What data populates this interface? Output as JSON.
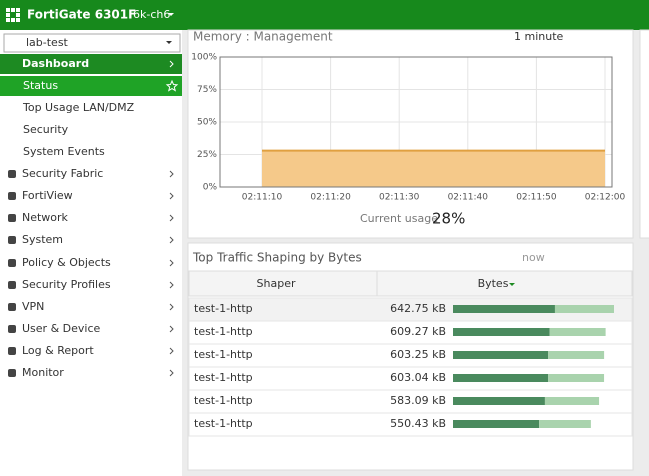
{
  "header": {
    "product": "FortiGate 6301F",
    "device": "6k-ch6"
  },
  "sidebar": {
    "vdom": "lab-test",
    "dashboard": {
      "label": "Dashboard",
      "items": [
        "Status",
        "Top Usage LAN/DMZ",
        "Security",
        "System Events"
      ]
    },
    "menu": [
      "Security Fabric",
      "FortiView",
      "Network",
      "System",
      "Policy & Objects",
      "Security Profiles",
      "VPN",
      "User & Device",
      "Log & Report",
      "Monitor"
    ]
  },
  "memory_widget": {
    "title": "Memory : Management",
    "interval": "1 minute",
    "chart": {
      "type": "area",
      "categories": [
        "02:11:10",
        "02:11:20",
        "02:11:30",
        "02:11:40",
        "02:11:50",
        "02:12:00"
      ],
      "values": [
        28,
        28,
        28,
        28,
        28,
        28
      ],
      "color": "#f5c98a",
      "ylim": [
        0,
        100
      ],
      "yticks": [
        {
          "value": 0,
          "label": "0%"
        },
        {
          "value": 25,
          "label": "25%"
        },
        {
          "value": 50,
          "label": "50%"
        },
        {
          "value": 75,
          "label": "75%"
        },
        {
          "value": 100,
          "label": "100%"
        }
      ],
      "grid": true
    },
    "current_usage_label": "Current usage",
    "current_usage": 28,
    "current_usage_label_value": "28%"
  },
  "traffic_widget": {
    "title": "Top Traffic Shaping by Bytes",
    "refresh": "now",
    "columns": [
      "Shaper",
      "Bytes"
    ],
    "rows": [
      {
        "name": "test-1-http",
        "bytes": 642.75,
        "bytes_label": "642.75 kB",
        "segments": [
          407,
          235.75
        ]
      },
      {
        "name": "test-1-http",
        "bytes": 609.27,
        "bytes_label": "609.27 kB",
        "segments": [
          386,
          223.27
        ]
      },
      {
        "name": "test-1-http",
        "bytes": 603.25,
        "bytes_label": "603.25 kB",
        "segments": [
          380,
          223.25
        ]
      },
      {
        "name": "test-1-http",
        "bytes": 603.04,
        "bytes_label": "603.04 kB",
        "segments": [
          380,
          223.04
        ]
      },
      {
        "name": "test-1-http",
        "bytes": 583.09,
        "bytes_label": "583.09 kB",
        "segments": [
          367,
          216.09
        ]
      },
      {
        "name": "test-1-http",
        "bytes": 550.43,
        "bytes_label": "550.43 kB",
        "segments": [
          344,
          206.43
        ]
      }
    ],
    "bar_colors": [
      "#4a8a5e",
      "#a9d3ad"
    ]
  }
}
